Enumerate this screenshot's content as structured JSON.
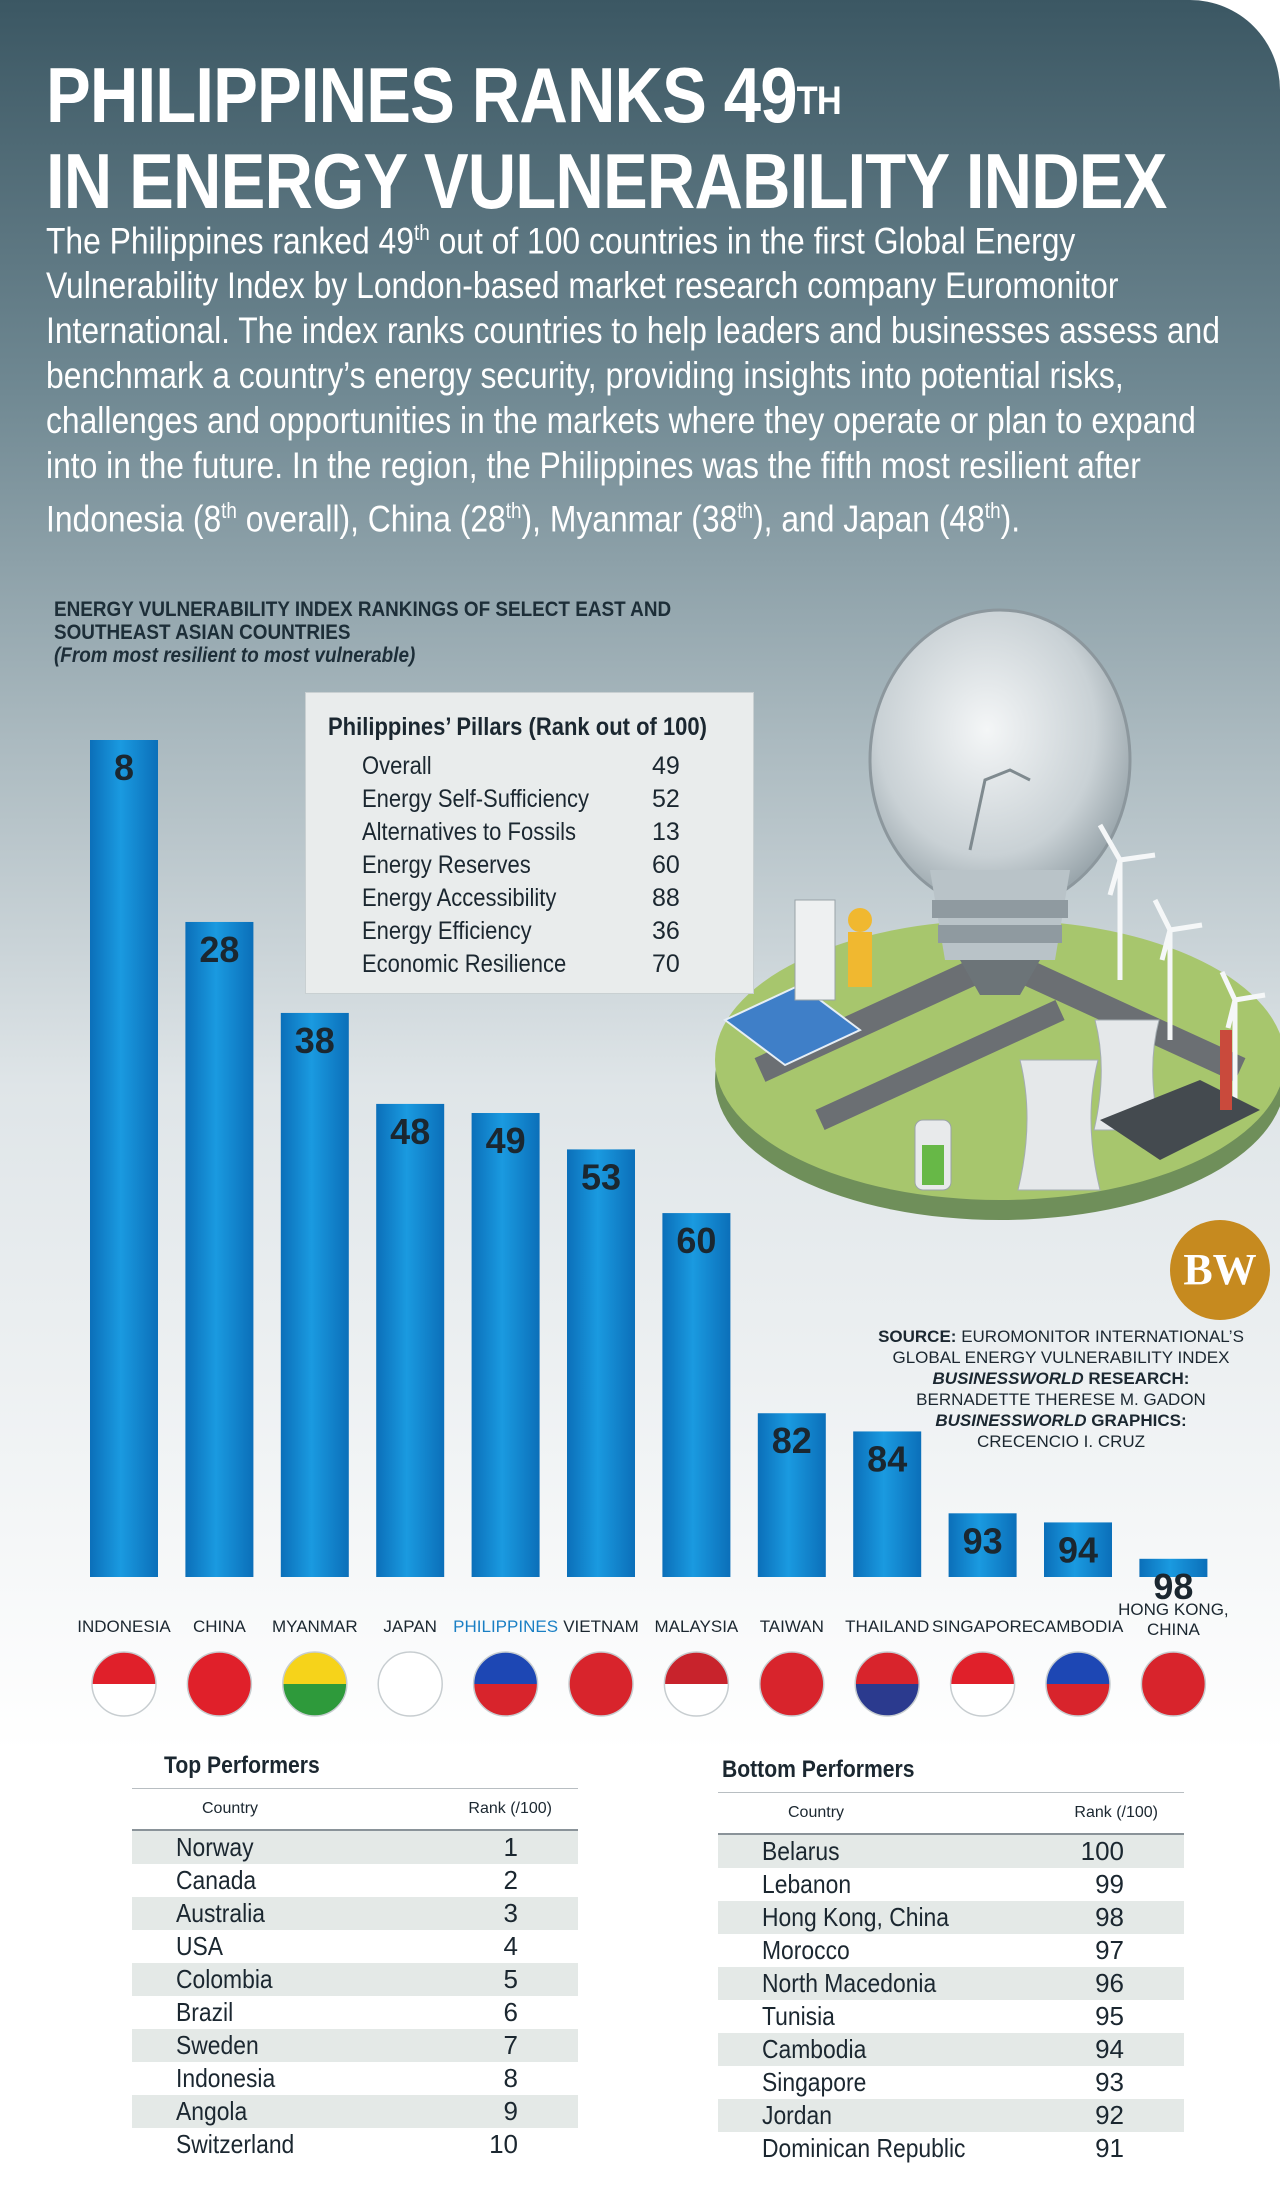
{
  "header": {
    "headline_line1": "PHILIPPINES RANKS 49",
    "headline_sup": "TH",
    "headline_line2": "IN ENERGY VULNERABILITY INDEX"
  },
  "intro": {
    "p1": "The Philippines ranked 49",
    "sup1": "th",
    "p2": " out of 100 countries in the first Global Energy Vulnerability Index by London-based market research company Euromonitor International. The index ranks countries to help leaders and businesses assess and benchmark a country’s energy security, providing insights into potential risks, challenges and opportunities in the markets where they operate or plan to expand into in the future. In the region, the Philippines was the fifth most resilient after Indonesia (8",
    "sup2": "th",
    "p3": " overall), China (28",
    "sup3": "th",
    "p4": "), Myanmar (38",
    "sup4": "th",
    "p5": "), and Japan (48",
    "sup5": "th",
    "p6": ")."
  },
  "chart_data": {
    "type": "bar",
    "title": "ENERGY VULNERABILITY INDEX RANKINGS OF SELECT EAST AND SOUTHEAST ASIAN COUNTRIES",
    "subtitle": "(From most resilient to most vulnerable)",
    "categories": [
      "INDONESIA",
      "CHINA",
      "MYANMAR",
      "JAPAN",
      "PHILIPPINES",
      "VIETNAM",
      "MALAYSIA",
      "TAIWAN",
      "THAILAND",
      "SINGAPORE",
      "CAMBODIA",
      "HONG KONG, CHINA"
    ],
    "values": [
      8,
      28,
      38,
      48,
      49,
      53,
      60,
      82,
      84,
      93,
      94,
      98
    ],
    "highlight": "PHILIPPINES",
    "colors": {
      "bar": "#1a9ae0",
      "highlight_label": "#1a7fc4"
    }
  },
  "pillars": {
    "title": "Philippines’ Pillars (Rank out of 100)",
    "rows": [
      {
        "name": "Overall",
        "rank": "49"
      },
      {
        "name": "Energy Self-Sufficiency",
        "rank": "52"
      },
      {
        "name": "Alternatives to Fossils",
        "rank": "13"
      },
      {
        "name": "Energy Reserves",
        "rank": "60"
      },
      {
        "name": "Energy Accessibility",
        "rank": "88"
      },
      {
        "name": "Energy Efficiency",
        "rank": "36"
      },
      {
        "name": "Economic Resilience",
        "rank": "70"
      }
    ]
  },
  "logo": {
    "text": "BW"
  },
  "source": {
    "label1": "SOURCE:",
    "text1": " EUROMONITOR INTERNATIONAL’S GLOBAL ENERGY VULNERABILITY INDEX",
    "label2": "BUSINESSWORLD",
    "label2b": " RESEARCH:",
    "text2": "BERNADETTE THERESE M. GADON",
    "label3": "BUSINESSWORLD",
    "label3b": " GRAPHICS:",
    "text3": "CRECENCIO I. CRUZ"
  },
  "top_performers": {
    "title": "Top Performers",
    "col_country": "Country",
    "col_rank": "Rank (/100)",
    "rows": [
      {
        "country": "Norway",
        "rank": "1"
      },
      {
        "country": "Canada",
        "rank": "2"
      },
      {
        "country": "Australia",
        "rank": "3"
      },
      {
        "country": "USA",
        "rank": "4"
      },
      {
        "country": "Colombia",
        "rank": "5"
      },
      {
        "country": "Brazil",
        "rank": "6"
      },
      {
        "country": "Sweden",
        "rank": "7"
      },
      {
        "country": "Indonesia",
        "rank": "8"
      },
      {
        "country": "Angola",
        "rank": "9"
      },
      {
        "country": "Switzerland",
        "rank": "10"
      }
    ]
  },
  "bottom_performers": {
    "title": "Bottom Performers",
    "col_country": "Country",
    "col_rank": "Rank (/100)",
    "rows": [
      {
        "country": "Belarus",
        "rank": "100"
      },
      {
        "country": "Lebanon",
        "rank": "99"
      },
      {
        "country": "Hong Kong, China",
        "rank": "98"
      },
      {
        "country": "Morocco",
        "rank": "97"
      },
      {
        "country": "North Macedonia",
        "rank": "96"
      },
      {
        "country": "Tunisia",
        "rank": "95"
      },
      {
        "country": "Cambodia",
        "rank": "94"
      },
      {
        "country": "Singapore",
        "rank": "93"
      },
      {
        "country": "Jordan",
        "rank": "92"
      },
      {
        "country": "Dominican Republic",
        "rank": "91"
      }
    ]
  }
}
